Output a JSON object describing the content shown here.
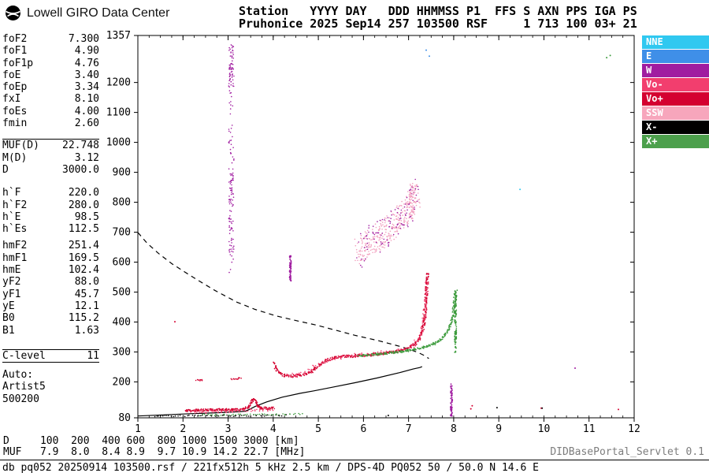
{
  "logo": {
    "text": "Lowell GIRO Data Center"
  },
  "header": {
    "line1": "Station   YYYY DAY   DDD HHMMSS P1  FFS S AXN PPS IGA PS",
    "line2": "Pruhonice 2025 Sep14 257 103500 RSF     1 713 100 03+ 21"
  },
  "params": {
    "rows": [
      {
        "label": "foF2",
        "value": "7.300"
      },
      {
        "label": "foF1",
        "value": "4.90"
      },
      {
        "label": "foF1p",
        "value": "4.76"
      },
      {
        "label": "foE",
        "value": "3.40"
      },
      {
        "label": "foEp",
        "value": "3.34"
      },
      {
        "label": "fxI",
        "value": "8.10"
      },
      {
        "label": "foEs",
        "value": "4.00"
      },
      {
        "label": "fmin",
        "value": "2.60"
      },
      {
        "label": "MUF(D)",
        "value": "22.748"
      },
      {
        "label": "M(D)",
        "value": "3.12"
      },
      {
        "label": "D",
        "value": "3000.0"
      },
      {
        "label": "h`F",
        "value": "220.0"
      },
      {
        "label": "h`F2",
        "value": "280.0"
      },
      {
        "label": "h`E",
        "value": "98.5"
      },
      {
        "label": "h`Es",
        "value": "112.5"
      },
      {
        "label": "hmF2",
        "value": "251.4"
      },
      {
        "label": "hmF1",
        "value": "169.5"
      },
      {
        "label": "hmE",
        "value": "102.4"
      },
      {
        "label": "yF2",
        "value": "88.0"
      },
      {
        "label": "yF1",
        "value": "45.7"
      },
      {
        "label": "yE",
        "value": "12.1"
      },
      {
        "label": "B0",
        "value": "115.2"
      },
      {
        "label": "B1",
        "value": "1.63"
      },
      {
        "label": "C-level",
        "value": "11"
      }
    ],
    "auto": {
      "title": "Auto:",
      "line1": "Artist5",
      "line2": "500200"
    }
  },
  "legend": [
    {
      "label": "NNE",
      "color": "#30C8F0"
    },
    {
      "label": "E",
      "color": "#3F8FE8"
    },
    {
      "label": "W",
      "color": "#A01CA0"
    },
    {
      "label": "Vo-",
      "color": "#F23E6E"
    },
    {
      "label": "Vo+",
      "color": "#D40030"
    },
    {
      "label": "SSW",
      "color": "#F7A6BC"
    },
    {
      "label": "X-",
      "color": "#000000"
    },
    {
      "label": "X+",
      "color": "#4CA04C"
    }
  ],
  "muf_table": {
    "d_row": "D     100  200  400 600  800 1000 1500 3000 [km]",
    "muf_row": "MUF   7.9  8.0  8.4 8.9  9.7 10.9 14.2 22.7 [MHz]"
  },
  "status": {
    "left": "db pq052 20250914 103500.rsf / 221fx512h 5 kHz 2.5 km / DPS-4D PQ052 50 / 50.0 N 14.6 E",
    "right": "DIDBasePortal_Servlet 0.1"
  },
  "chart_data": {
    "type": "scatter",
    "title": "Pruhonice ionogram 2025 Sep14 103500",
    "x_axis": {
      "label": "[MHz]",
      "min": 1,
      "max": 12,
      "ticks": [
        1,
        2,
        3,
        4,
        5,
        6,
        7,
        8,
        9,
        10,
        11,
        12
      ]
    },
    "y_axis": {
      "label": "[km]",
      "min": 80,
      "max": 1357,
      "ticks": [
        80,
        200,
        300,
        400,
        500,
        600,
        700,
        800,
        900,
        1000,
        1100,
        1200,
        1357
      ]
    },
    "palette": {
      "black": "#000000",
      "voplus": "#D40030",
      "vominus": "#F23E6E",
      "xplus": "#3C9B3C",
      "w": "#A01CA0",
      "ssw": "#F2A0BE",
      "nne": "#30C8F0",
      "e": "#3F8FE8"
    },
    "series": [
      {
        "name": "true-height-profile",
        "mode": "line",
        "color": "black",
        "width": 1.2,
        "points": [
          [
            1.0,
            86
          ],
          [
            1.6,
            90
          ],
          [
            2.2,
            94
          ],
          [
            2.8,
            97
          ],
          [
            3.2,
            100
          ],
          [
            3.38,
            102
          ],
          [
            3.46,
            107
          ],
          [
            3.6,
            118
          ],
          [
            3.85,
            133
          ],
          [
            4.2,
            149
          ],
          [
            4.6,
            162
          ],
          [
            4.9,
            170
          ],
          [
            5.3,
            182
          ],
          [
            5.8,
            197
          ],
          [
            6.3,
            213
          ],
          [
            6.8,
            231
          ],
          [
            7.1,
            243
          ],
          [
            7.25,
            248
          ],
          [
            7.3,
            251
          ]
        ]
      },
      {
        "name": "muf-transmission-curve",
        "mode": "dash",
        "color": "black",
        "width": 1.2,
        "points": [
          [
            1.0,
            699
          ],
          [
            1.2,
            664
          ],
          [
            1.45,
            630
          ],
          [
            1.75,
            595
          ],
          [
            2.05,
            566
          ],
          [
            2.35,
            538
          ],
          [
            2.7,
            506
          ],
          [
            3.0,
            482
          ],
          [
            3.2,
            466
          ],
          [
            3.6,
            442
          ],
          [
            4.05,
            421
          ],
          [
            4.5,
            405
          ],
          [
            4.95,
            390
          ],
          [
            5.4,
            372
          ],
          [
            5.8,
            356
          ],
          [
            6.35,
            337
          ],
          [
            6.85,
            317
          ],
          [
            7.2,
            299
          ],
          [
            7.35,
            288
          ],
          [
            7.45,
            278
          ]
        ]
      },
      {
        "name": "f-trace-o-mode",
        "mode": "trace",
        "color": "voplus",
        "jx": 0.03,
        "jy": 4.5,
        "density": 1.4,
        "r": 0.9,
        "points": [
          [
            4.02,
            262
          ],
          [
            4.06,
            245
          ],
          [
            4.12,
            232
          ],
          [
            4.2,
            224
          ],
          [
            4.35,
            219
          ],
          [
            4.55,
            221
          ],
          [
            4.75,
            228
          ],
          [
            4.9,
            240
          ],
          [
            5.0,
            254
          ],
          [
            5.15,
            270
          ],
          [
            5.3,
            279
          ],
          [
            5.5,
            284
          ],
          [
            5.8,
            287
          ],
          [
            6.1,
            290
          ],
          [
            6.4,
            294
          ],
          [
            6.7,
            300
          ],
          [
            6.95,
            310
          ],
          [
            7.12,
            324
          ],
          [
            7.24,
            345
          ],
          [
            7.32,
            378
          ],
          [
            7.36,
            420
          ],
          [
            7.38,
            465
          ],
          [
            7.4,
            510
          ],
          [
            7.42,
            548
          ],
          [
            7.43,
            565
          ]
        ]
      },
      {
        "name": "f-trace-o-mode-spread",
        "mode": "trace",
        "color": "vominus",
        "jx": 0.04,
        "jy": 7,
        "density": 0.5,
        "r": 0.8,
        "points": [
          [
            4.3,
            222
          ],
          [
            4.7,
            230
          ],
          [
            5.1,
            268
          ],
          [
            5.6,
            286
          ],
          [
            6.2,
            293
          ],
          [
            6.8,
            305
          ],
          [
            7.1,
            322
          ],
          [
            7.3,
            370
          ],
          [
            7.38,
            470
          ],
          [
            7.42,
            545
          ]
        ]
      },
      {
        "name": "f-trace-x-mode",
        "mode": "trace",
        "color": "xplus",
        "jx": 0.03,
        "jy": 3.5,
        "density": 1.3,
        "r": 0.9,
        "points": [
          [
            5.9,
            288
          ],
          [
            6.2,
            291
          ],
          [
            6.5,
            295
          ],
          [
            6.8,
            300
          ],
          [
            7.1,
            307
          ],
          [
            7.35,
            316
          ],
          [
            7.6,
            330
          ],
          [
            7.78,
            350
          ],
          [
            7.9,
            378
          ],
          [
            7.98,
            420
          ],
          [
            8.02,
            465
          ],
          [
            8.05,
            505
          ]
        ]
      },
      {
        "name": "x-trace-asymptote",
        "mode": "column",
        "color": "xplus",
        "n": 110,
        "jx": 0.02,
        "r": 0.9,
        "points": [
          [
            8.04,
            295,
            505
          ]
        ]
      },
      {
        "name": "es-trace",
        "mode": "trace",
        "color": "voplus",
        "jx": 0.025,
        "jy": 4,
        "density": 2.2,
        "r": 0.8,
        "points": [
          [
            2.05,
            104
          ],
          [
            2.5,
            106
          ],
          [
            2.9,
            107
          ],
          [
            3.2,
            108
          ],
          [
            3.38,
            110
          ],
          [
            3.46,
            118
          ],
          [
            3.53,
            134
          ],
          [
            3.58,
            143
          ],
          [
            3.64,
            124
          ],
          [
            3.72,
            113
          ],
          [
            3.88,
            112
          ],
          [
            4.02,
            113
          ]
        ]
      },
      {
        "name": "es-trace-spread",
        "mode": "trace",
        "color": "vominus",
        "jx": 0.03,
        "jy": 5,
        "density": 0.6,
        "r": 0.8,
        "points": [
          [
            2.2,
            100
          ],
          [
            2.8,
            102
          ],
          [
            3.3,
            104
          ],
          [
            3.7,
            106
          ],
          [
            4.0,
            108
          ]
        ]
      },
      {
        "name": "es-second-order-a",
        "mode": "trace",
        "color": "voplus",
        "jx": 0.02,
        "jy": 2.5,
        "density": 1.2,
        "r": 0.8,
        "points": [
          [
            2.3,
            206
          ],
          [
            2.45,
            206
          ]
        ]
      },
      {
        "name": "es-second-order-b",
        "mode": "trace",
        "color": "voplus",
        "jx": 0.02,
        "jy": 2.5,
        "density": 1.0,
        "r": 0.8,
        "points": [
          [
            3.08,
            210
          ],
          [
            3.3,
            212
          ]
        ]
      },
      {
        "name": "e-region-mix-black",
        "mode": "trace",
        "color": "black",
        "jx": 0.03,
        "jy": 2.5,
        "density": 0.35,
        "r": 0.8,
        "points": [
          [
            1.35,
            86
          ],
          [
            2.0,
            87
          ],
          [
            2.7,
            87
          ],
          [
            3.4,
            88
          ],
          [
            4.0,
            88
          ],
          [
            4.35,
            89
          ]
        ]
      },
      {
        "name": "e-region-mix-green",
        "mode": "trace",
        "color": "xplus",
        "jx": 0.03,
        "jy": 2.5,
        "density": 0.35,
        "r": 0.8,
        "points": [
          [
            2.4,
            89
          ],
          [
            3.1,
            90
          ],
          [
            3.8,
            91
          ],
          [
            4.3,
            92
          ],
          [
            4.7,
            94
          ]
        ]
      },
      {
        "name": "oblique-w-column",
        "mode": "column",
        "color": "w",
        "n": 100,
        "jx": 0.06,
        "r": 0.8,
        "points": [
          [
            3.07,
            560,
            1330
          ]
        ]
      },
      {
        "name": "oblique-w-column-top",
        "mode": "column",
        "color": "w",
        "n": 40,
        "jx": 0.05,
        "r": 0.8,
        "points": [
          [
            3.07,
            1150,
            1330
          ]
        ]
      },
      {
        "name": "oblique-w-column-mid",
        "mode": "column",
        "color": "w",
        "n": 50,
        "jx": 0.05,
        "r": 0.8,
        "points": [
          [
            3.07,
            620,
            900
          ]
        ]
      },
      {
        "name": "w-bar-4mhz",
        "mode": "column",
        "color": "w",
        "n": 60,
        "jx": 0.018,
        "r": 0.9,
        "points": [
          [
            4.38,
            536,
            622
          ]
        ]
      },
      {
        "name": "w-bar-8mhz",
        "mode": "column",
        "color": "w",
        "n": 70,
        "jx": 0.02,
        "r": 0.9,
        "points": [
          [
            7.95,
            86,
            196
          ]
        ]
      },
      {
        "name": "spread-f-cloud-pink",
        "mode": "trace",
        "color": "ssw",
        "jx": 0.07,
        "jy": 48,
        "density": 3.0,
        "r": 0.8,
        "points": [
          [
            5.85,
            635
          ],
          [
            6.05,
            655
          ],
          [
            6.25,
            675
          ],
          [
            6.45,
            698
          ],
          [
            6.65,
            722
          ],
          [
            6.85,
            750
          ],
          [
            7.0,
            778
          ],
          [
            7.1,
            802
          ],
          [
            7.2,
            828
          ]
        ]
      },
      {
        "name": "spread-f-cloud-magenta",
        "mode": "trace",
        "color": "w",
        "jx": 0.07,
        "jy": 60,
        "density": 1.0,
        "r": 0.8,
        "points": [
          [
            5.9,
            640
          ],
          [
            6.3,
            680
          ],
          [
            6.7,
            730
          ],
          [
            7.0,
            780
          ],
          [
            7.2,
            830
          ]
        ]
      },
      {
        "name": "spread-f-cloud-dense",
        "mode": "column",
        "color": "ssw",
        "n": 45,
        "jx": 0.05,
        "r": 0.8,
        "points": [
          [
            7.06,
            755,
            865
          ]
        ]
      },
      {
        "name": "noise-red",
        "mode": "spots",
        "color": "voplus",
        "r": 1.0,
        "points": [
          [
            1.82,
            401
          ],
          [
            8.38,
            110
          ],
          [
            8.41,
            120
          ],
          [
            9.94,
            112
          ],
          [
            11.65,
            108
          ]
        ]
      },
      {
        "name": "noise-green",
        "mode": "spots",
        "color": "xplus",
        "r": 1.0,
        "points": [
          [
            11.39,
            1283
          ],
          [
            11.47,
            1290
          ]
        ]
      },
      {
        "name": "noise-cyan",
        "mode": "spots",
        "color": "nne",
        "r": 1.0,
        "points": [
          [
            9.47,
            843
          ]
        ]
      },
      {
        "name": "noise-blue",
        "mode": "spots",
        "color": "e",
        "r": 1.0,
        "points": [
          [
            7.39,
            1308
          ],
          [
            7.46,
            1288
          ]
        ]
      },
      {
        "name": "noise-black",
        "mode": "spots",
        "color": "black",
        "r": 1.0,
        "points": [
          [
            9.96,
            112
          ],
          [
            8.96,
            114
          ],
          [
            6.55,
            88
          ]
        ]
      },
      {
        "name": "noise-magenta",
        "mode": "spots",
        "color": "w",
        "r": 1.0,
        "points": [
          [
            10.69,
            246
          ]
        ]
      }
    ]
  }
}
